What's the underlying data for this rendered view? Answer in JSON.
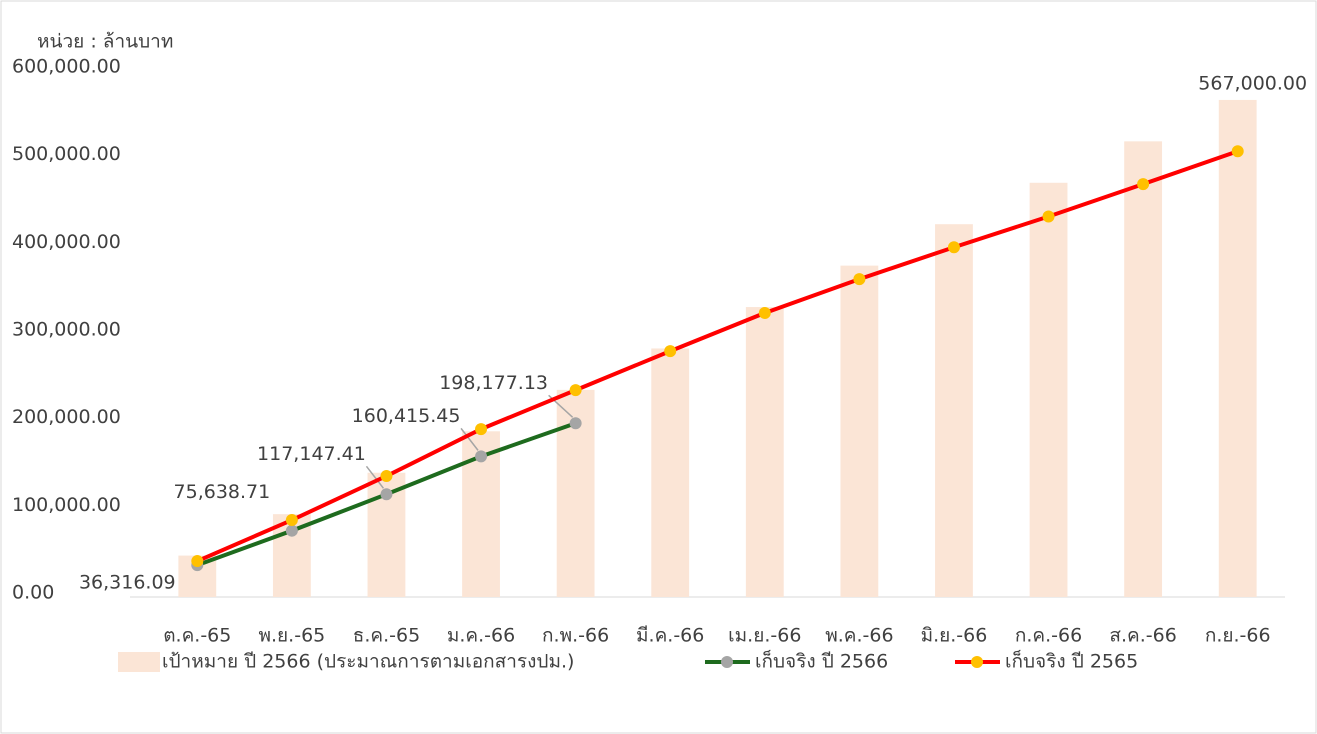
{
  "chart_data": {
    "type": "combo",
    "unit_label": "หน่วย : ล้านบาท",
    "categories": [
      "ต.ค.-65",
      "พ.ย.-65",
      "ธ.ค.-65",
      "ม.ค.-66",
      "ก.พ.-66",
      "มี.ค.-66",
      "เม.ย.-66",
      "พ.ค.-66",
      "มิ.ย.-66",
      "ก.ค.-66",
      "ส.ค.-66",
      "ก.ย.-66"
    ],
    "ylim": [
      0,
      600000
    ],
    "yticks": [
      {
        "value": 0,
        "label": "0.00"
      },
      {
        "value": 100000,
        "label": "100,000.00"
      },
      {
        "value": 200000,
        "label": "200,000.00"
      },
      {
        "value": 300000,
        "label": "300,000.00"
      },
      {
        "value": 400000,
        "label": "400,000.00"
      },
      {
        "value": 500000,
        "label": "500,000.00"
      },
      {
        "value": 600000,
        "label": "600,000.00"
      }
    ],
    "legend": "bottom",
    "series": [
      {
        "name": "เป้าหมาย ปี 2566 (ประมาณการตามเอกสารงปม.)",
        "type": "bar",
        "color": "#fbe5d6",
        "values": [
          47250,
          94500,
          141750,
          189000,
          236250,
          283500,
          330750,
          378000,
          425250,
          472500,
          519750,
          567000
        ],
        "value_labels": [
          null,
          null,
          null,
          null,
          null,
          null,
          null,
          null,
          null,
          null,
          null,
          "567,000.00"
        ]
      },
      {
        "name": "เก็บจริง ปี 2566",
        "type": "line",
        "color": "#1e6b1e",
        "marker_color": "#a5a5a5",
        "values": [
          36316.09,
          75638.71,
          117147.41,
          160415.45,
          198177.13,
          null,
          null,
          null,
          null,
          null,
          null,
          null
        ],
        "value_labels": [
          "36,316.09",
          "75,638.71",
          "117,147.41",
          "160,415.45",
          "198,177.13",
          null,
          null,
          null,
          null,
          null,
          null,
          null
        ]
      },
      {
        "name": "เก็บจริง ปี 2565",
        "type": "line",
        "color": "#ff0000",
        "marker_color": "#ffc000",
        "values": [
          41000,
          87800,
          138000,
          191500,
          236000,
          280500,
          324000,
          362600,
          399000,
          434000,
          471000,
          508500
        ]
      }
    ]
  }
}
